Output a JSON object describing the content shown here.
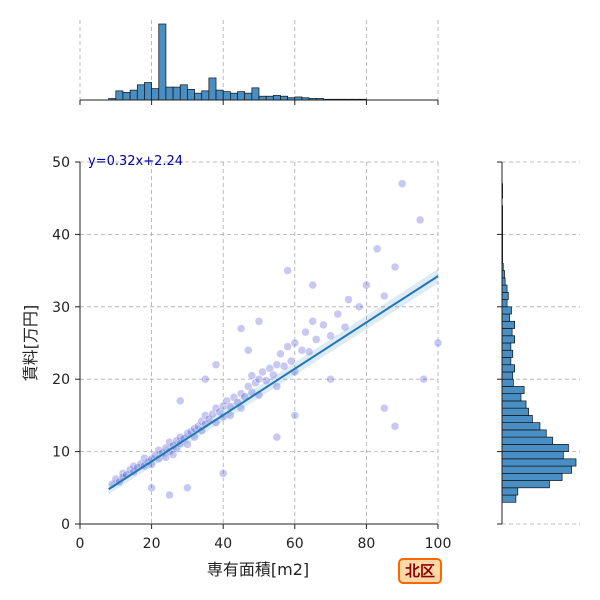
{
  "chart_data": {
    "type": "scatter",
    "xlabel": "専有面積[m2]",
    "ylabel": "賃料[万円]",
    "xlim": [
      0,
      100
    ],
    "ylim": [
      0,
      50
    ],
    "x_ticks": [
      0,
      20,
      40,
      60,
      80,
      100
    ],
    "y_ticks": [
      0,
      10,
      20,
      30,
      40,
      50
    ],
    "grid": true,
    "annotation": "y=0.32x+2.24",
    "badge": "北区",
    "regression": {
      "slope": 0.32,
      "intercept": 2.24,
      "x_range": [
        8,
        100
      ]
    },
    "points": [
      [
        9,
        5.5
      ],
      [
        10,
        6.2
      ],
      [
        11,
        5.8
      ],
      [
        12,
        7.0
      ],
      [
        12,
        6.5
      ],
      [
        13,
        6.8
      ],
      [
        14,
        7.5
      ],
      [
        15,
        7.2
      ],
      [
        15,
        8.0
      ],
      [
        16,
        7.8
      ],
      [
        17,
        8.3
      ],
      [
        18,
        8.0
      ],
      [
        18,
        9.1
      ],
      [
        19,
        8.6
      ],
      [
        20,
        9.0
      ],
      [
        20,
        8.2
      ],
      [
        21,
        9.5
      ],
      [
        22,
        9.0
      ],
      [
        22,
        10.2
      ],
      [
        23,
        9.8
      ],
      [
        24,
        10.5
      ],
      [
        24,
        9.2
      ],
      [
        25,
        10.0
      ],
      [
        25,
        11.3
      ],
      [
        26,
        10.8
      ],
      [
        26,
        9.6
      ],
      [
        27,
        11.5
      ],
      [
        27,
        10.4
      ],
      [
        28,
        12.0
      ],
      [
        28,
        11.1
      ],
      [
        29,
        11.8
      ],
      [
        30,
        12.5
      ],
      [
        30,
        11.0
      ],
      [
        31,
        12.8
      ],
      [
        32,
        13.2
      ],
      [
        32,
        12.0
      ],
      [
        33,
        13.5
      ],
      [
        34,
        12.9
      ],
      [
        34,
        14.2
      ],
      [
        35,
        13.8
      ],
      [
        35,
        15.0
      ],
      [
        36,
        14.5
      ],
      [
        37,
        15.2
      ],
      [
        38,
        14.0
      ],
      [
        38,
        16.0
      ],
      [
        39,
        15.5
      ],
      [
        40,
        16.3
      ],
      [
        40,
        14.8
      ],
      [
        41,
        17.0
      ],
      [
        42,
        16.2
      ],
      [
        42,
        15.0
      ],
      [
        43,
        17.5
      ],
      [
        44,
        16.8
      ],
      [
        45,
        18.0
      ],
      [
        45,
        16.0
      ],
      [
        46,
        17.6
      ],
      [
        47,
        19.0
      ],
      [
        48,
        18.2
      ],
      [
        48,
        20.5
      ],
      [
        49,
        19.5
      ],
      [
        50,
        20.0
      ],
      [
        50,
        17.8
      ],
      [
        51,
        21.0
      ],
      [
        52,
        19.8
      ],
      [
        53,
        21.5
      ],
      [
        54,
        20.6
      ],
      [
        55,
        22.0
      ],
      [
        55,
        19.0
      ],
      [
        56,
        23.5
      ],
      [
        57,
        21.8
      ],
      [
        58,
        24.5
      ],
      [
        59,
        22.5
      ],
      [
        60,
        25.0
      ],
      [
        60,
        21.0
      ],
      [
        62,
        24.0
      ],
      [
        63,
        26.5
      ],
      [
        64,
        23.8
      ],
      [
        65,
        28.0
      ],
      [
        66,
        25.5
      ],
      [
        68,
        27.5
      ],
      [
        70,
        26.0
      ],
      [
        72,
        29.0
      ],
      [
        74,
        27.2
      ],
      [
        75,
        31.0
      ],
      [
        78,
        30.0
      ],
      [
        80,
        33.0
      ],
      [
        83,
        38.0
      ],
      [
        85,
        31.5
      ],
      [
        88,
        35.5
      ],
      [
        90,
        47.0
      ],
      [
        95,
        42.0
      ],
      [
        100,
        25.0
      ],
      [
        96,
        20.0
      ],
      [
        58,
        35.0
      ],
      [
        65,
        33.0
      ],
      [
        45,
        27.0
      ],
      [
        50,
        28.0
      ],
      [
        30,
        5.0
      ],
      [
        40,
        7.0
      ],
      [
        55,
        12.0
      ],
      [
        60,
        15.0
      ],
      [
        70,
        20.0
      ],
      [
        85,
        16.0
      ],
      [
        88,
        13.5
      ],
      [
        25,
        4.0
      ],
      [
        20,
        5.0
      ],
      [
        35,
        20.0
      ],
      [
        28,
        17.0
      ],
      [
        38,
        22.0
      ],
      [
        47,
        24.0
      ]
    ],
    "top_hist": {
      "bin_start": 8,
      "bin_width": 2,
      "counts": [
        2,
        12,
        10,
        13,
        20,
        23,
        15,
        100,
        17,
        17,
        20,
        14,
        9,
        12,
        29,
        13,
        11,
        9,
        11,
        9,
        16,
        5,
        5,
        6,
        5,
        3,
        4,
        3,
        2,
        2,
        1,
        1,
        1,
        1,
        1,
        1
      ]
    },
    "right_hist": {
      "bin_start": 3,
      "bin_width": 1,
      "counts": [
        22,
        25,
        75,
        95,
        110,
        117,
        97,
        105,
        80,
        70,
        60,
        48,
        42,
        38,
        30,
        35,
        18,
        17,
        20,
        14,
        17,
        14,
        20,
        16,
        20,
        12,
        15,
        8,
        10,
        8,
        5,
        4,
        2,
        1,
        1,
        1,
        1,
        1,
        1,
        1,
        1,
        0,
        1,
        1
      ]
    }
  }
}
